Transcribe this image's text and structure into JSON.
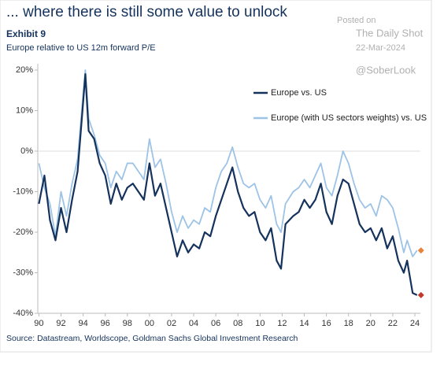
{
  "chart_data": {
    "type": "line",
    "title": "... where there is still some value to unlock",
    "exhibit": "Exhibit 9",
    "subtitle": "Europe relative to US 12m forward P/E",
    "source": "Source: Datastream, Worldscope, Goldman Sachs Global Investment Research",
    "watermark": [
      "Posted on",
      "The Daily Shot",
      "22-Mar-2024",
      "@SoberLook"
    ],
    "x": [
      1990,
      1990.5,
      1991,
      1991.5,
      1992,
      1992.5,
      1993,
      1993.5,
      1994,
      1994.2,
      1994.5,
      1995,
      1995.5,
      1996,
      1996.5,
      1997,
      1997.5,
      1998,
      1998.5,
      1999,
      1999.5,
      2000,
      2000.5,
      2001,
      2001.5,
      2002,
      2002.5,
      2003,
      2003.5,
      2004,
      2004.5,
      2005,
      2005.5,
      2006,
      2006.5,
      2007,
      2007.5,
      2008,
      2008.5,
      2009,
      2009.5,
      2010,
      2010.5,
      2011,
      2011.5,
      2011.9,
      2012.3,
      2013,
      2013.5,
      2014,
      2014.5,
      2015,
      2015.5,
      2016,
      2016.5,
      2017,
      2017.5,
      2018,
      2018.5,
      2019,
      2019.5,
      2020,
      2020.5,
      2021,
      2021.5,
      2022,
      2022.5,
      2023,
      2023.3,
      2023.8,
      2024.2
    ],
    "series": [
      {
        "name": "Europe vs. US",
        "color": "#14325c",
        "width": 2.2,
        "end_marker_color": "#c0392b",
        "values": [
          -13,
          -6,
          -17,
          -22,
          -14,
          -20,
          -12,
          -5,
          12,
          19,
          5,
          3,
          -3,
          -6,
          -13,
          -8,
          -12,
          -9,
          -8,
          -10,
          -12,
          -3,
          -11,
          -8,
          -14,
          -20,
          -26,
          -22,
          -25,
          -23,
          -24,
          -20,
          -21,
          -16,
          -12,
          -8,
          -4,
          -10,
          -14,
          -16,
          -15,
          -20,
          -22,
          -19,
          -27,
          -29,
          -18,
          -16,
          -15,
          -12,
          -14,
          -12,
          -8,
          -15,
          -18,
          -11,
          -7,
          -8,
          -13,
          -18,
          -20,
          -19,
          -22,
          -19,
          -24,
          -21,
          -27,
          -30,
          -27,
          -35,
          -35.5
        ]
      },
      {
        "name": "Europe (with US sectors weights) vs. US",
        "color": "#9dc3e6",
        "width": 1.8,
        "end_marker_color": "#e8833a",
        "values": [
          -3,
          -9,
          -13,
          -21,
          -10,
          -16,
          -8,
          -2,
          14,
          20,
          8,
          4,
          -1,
          -3,
          -9,
          -5,
          -7,
          -3,
          -3,
          -5,
          -7,
          3,
          -4,
          -2,
          -8,
          -15,
          -20,
          -16,
          -19,
          -17,
          -18,
          -14,
          -15,
          -9,
          -5,
          -3,
          1,
          -4,
          -8,
          -9,
          -8,
          -12,
          -14,
          -11,
          -18,
          -20,
          -13,
          -10,
          -9,
          -7,
          -9,
          -6,
          -3,
          -9,
          -11,
          -6,
          0,
          -3,
          -8,
          -12,
          -14,
          -13,
          -16,
          -11,
          -12,
          -14,
          -19,
          -25,
          -22,
          -26,
          -24.5
        ]
      }
    ],
    "xlim": [
      1989.9,
      2024.5
    ],
    "xticks": [
      {
        "value": 1990,
        "label": "90"
      },
      {
        "value": 1992,
        "label": "92"
      },
      {
        "value": 1994,
        "label": "94"
      },
      {
        "value": 1996,
        "label": "96"
      },
      {
        "value": 1998,
        "label": "98"
      },
      {
        "value": 2000,
        "label": "00"
      },
      {
        "value": 2002,
        "label": "02"
      },
      {
        "value": 2004,
        "label": "04"
      },
      {
        "value": 2006,
        "label": "06"
      },
      {
        "value": 2008,
        "label": "08"
      },
      {
        "value": 2010,
        "label": "10"
      },
      {
        "value": 2012,
        "label": "12"
      },
      {
        "value": 2014,
        "label": "14"
      },
      {
        "value": 2016,
        "label": "16"
      },
      {
        "value": 2018,
        "label": "18"
      },
      {
        "value": 2020,
        "label": "20"
      },
      {
        "value": 2022,
        "label": "22"
      },
      {
        "value": 2024,
        "label": "24"
      }
    ],
    "ylim": [
      -40,
      20
    ],
    "yticks": [
      {
        "value": -40,
        "label": "-40%"
      },
      {
        "value": -30,
        "label": "-30%"
      },
      {
        "value": -20,
        "label": "-20%"
      },
      {
        "value": -10,
        "label": "-10%"
      },
      {
        "value": 0,
        "label": "0%"
      },
      {
        "value": 10,
        "label": "10%"
      },
      {
        "value": 20,
        "label": "20%"
      }
    ]
  }
}
